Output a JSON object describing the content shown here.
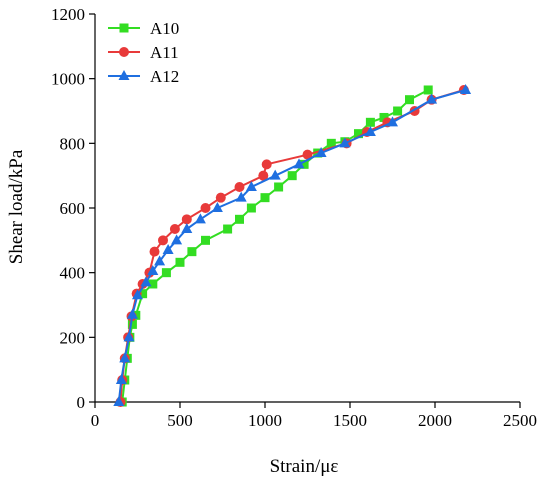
{
  "chart_data": {
    "type": "line",
    "title": "",
    "xlabel": "Strain/με",
    "ylabel": "Shear load/kPa",
    "xlim": [
      0,
      2500
    ],
    "ylim": [
      0,
      1200
    ],
    "xticks": [
      0,
      500,
      1000,
      1500,
      2000,
      2500
    ],
    "yticks": [
      0,
      200,
      400,
      600,
      800,
      1000,
      1200
    ],
    "grid": false,
    "legend_position": "top-left",
    "series": [
      {
        "name": "A10",
        "color": "#33dd22",
        "marker": "square",
        "x": [
          160,
          175,
          190,
          205,
          220,
          240,
          280,
          340,
          420,
          500,
          570,
          650,
          780,
          850,
          920,
          1000,
          1080,
          1160,
          1230,
          1310,
          1390,
          1470,
          1550,
          1620,
          1700,
          1780,
          1850,
          1960
        ],
        "y": [
          0,
          68,
          135,
          200,
          240,
          268,
          335,
          365,
          400,
          432,
          465,
          500,
          535,
          565,
          600,
          632,
          665,
          700,
          735,
          770,
          800,
          805,
          830,
          865,
          880,
          900,
          935,
          965
        ]
      },
      {
        "name": "A11",
        "color": "#e83a3a",
        "marker": "circle",
        "x": [
          150,
          160,
          175,
          195,
          215,
          245,
          280,
          320,
          350,
          400,
          470,
          540,
          650,
          740,
          850,
          990,
          1010,
          1250,
          1480,
          1600,
          1720,
          1880,
          1980,
          2170
        ],
        "y": [
          0,
          68,
          135,
          200,
          265,
          335,
          365,
          400,
          465,
          500,
          535,
          565,
          600,
          632,
          665,
          700,
          735,
          765,
          800,
          835,
          865,
          900,
          935,
          965
        ]
      },
      {
        "name": "A12",
        "color": "#1f6fe0",
        "marker": "triangle",
        "x": [
          140,
          155,
          175,
          200,
          220,
          250,
          300,
          340,
          380,
          430,
          480,
          540,
          620,
          720,
          860,
          920,
          1060,
          1200,
          1330,
          1470,
          1620,
          1750,
          1980,
          2180
        ],
        "y": [
          0,
          68,
          135,
          200,
          270,
          330,
          370,
          405,
          435,
          470,
          500,
          535,
          565,
          600,
          632,
          665,
          700,
          735,
          770,
          800,
          835,
          865,
          935,
          965
        ]
      }
    ]
  }
}
